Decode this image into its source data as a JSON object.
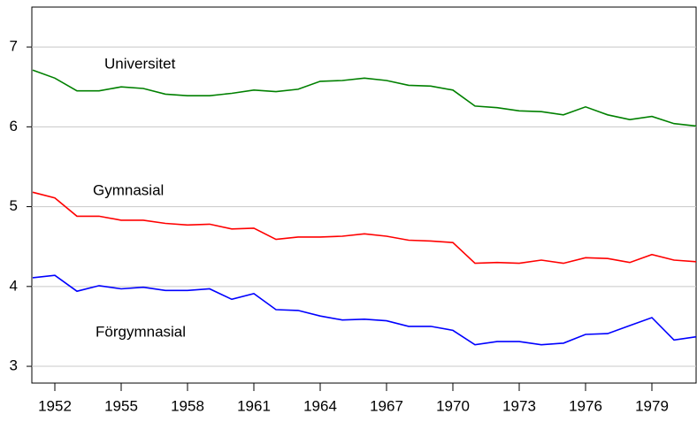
{
  "chart_data": {
    "type": "line",
    "x": [
      1951,
      1952,
      1953,
      1954,
      1955,
      1956,
      1957,
      1958,
      1959,
      1960,
      1961,
      1962,
      1963,
      1964,
      1965,
      1966,
      1967,
      1968,
      1969,
      1970,
      1971,
      1972,
      1973,
      1974,
      1975,
      1976,
      1977,
      1978,
      1979,
      1980,
      1981
    ],
    "series": [
      {
        "name": "Universitet",
        "color": "#008000",
        "values": [
          6.71,
          6.61,
          6.45,
          6.45,
          6.5,
          6.48,
          6.41,
          6.39,
          6.39,
          6.42,
          6.46,
          6.44,
          6.47,
          6.57,
          6.58,
          6.61,
          6.58,
          6.52,
          6.51,
          6.46,
          6.26,
          6.24,
          6.2,
          6.19,
          6.15,
          6.25,
          6.15,
          6.09,
          6.13,
          6.04,
          6.01
        ]
      },
      {
        "name": "Gymnasial",
        "color": "#ff0000",
        "values": [
          5.18,
          5.11,
          4.88,
          4.88,
          4.83,
          4.83,
          4.79,
          4.77,
          4.78,
          4.72,
          4.73,
          4.59,
          4.62,
          4.62,
          4.63,
          4.66,
          4.63,
          4.58,
          4.57,
          4.55,
          4.29,
          4.3,
          4.29,
          4.33,
          4.29,
          4.36,
          4.35,
          4.3,
          4.4,
          4.33,
          4.31
        ]
      },
      {
        "name": "Förgymnasial",
        "color": "#0000ff",
        "values": [
          4.11,
          4.14,
          3.94,
          4.01,
          3.97,
          3.99,
          3.95,
          3.95,
          3.97,
          3.84,
          3.91,
          3.71,
          3.7,
          3.63,
          3.58,
          3.59,
          3.57,
          3.5,
          3.5,
          3.45,
          3.27,
          3.31,
          3.31,
          3.27,
          3.29,
          3.4,
          3.41,
          3.51,
          3.61,
          3.33,
          3.37
        ]
      }
    ],
    "xlim": [
      1951,
      1981
    ],
    "xticks": [
      1952,
      1955,
      1958,
      1961,
      1964,
      1967,
      1970,
      1973,
      1976,
      1979
    ],
    "ylim": [
      2.79,
      7.5
    ],
    "yticks": [
      3,
      4,
      5,
      6,
      7
    ],
    "grid": true
  }
}
